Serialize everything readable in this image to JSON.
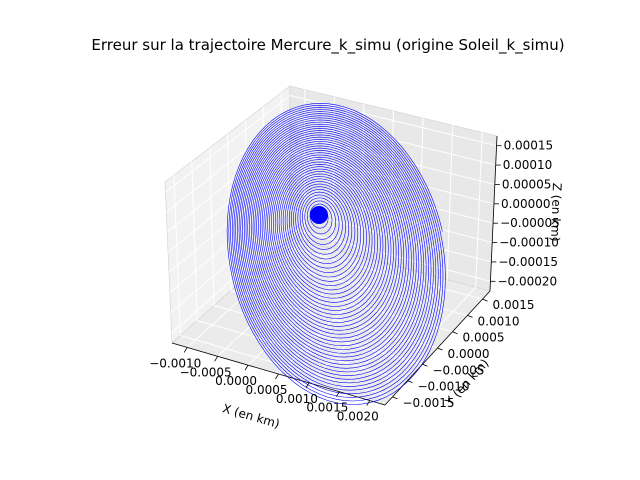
{
  "chart_data": {
    "type": "line3d",
    "title": "Erreur sur la trajectoire Mercure_k_simu (origine Soleil_k_simu)",
    "xlabel": "X (en km)",
    "ylabel": "Y (en km)",
    "zlabel": "Z (en km)",
    "x_ticks": [
      "−0.0010",
      "−0.0005",
      "0.0000",
      "0.0005",
      "0.0010",
      "0.0015",
      "0.0020"
    ],
    "y_ticks": [
      "−0.0015",
      "−0.0010",
      "−0.0005",
      "0.0000",
      "0.0005",
      "0.0010",
      "0.0015"
    ],
    "z_ticks": [
      "0.00015",
      "0.00010",
      "0.00005",
      "0.00000",
      "−0.00005",
      "−0.00010",
      "−0.00015",
      "−0.00020"
    ],
    "xlim": [
      -0.0013,
      0.0021
    ],
    "ylim": [
      -0.0017,
      0.0017
    ],
    "zlim": [
      -0.00022,
      0.00017
    ],
    "grid": true,
    "series": [
      {
        "color": "#0000ff",
        "shape": "spiral",
        "x_range": [
          -0.0011,
          0.002
        ],
        "y_range": [
          -0.0016,
          0.0016
        ],
        "z_range": [
          -0.00021,
          0.00016
        ],
        "turns": 45
      }
    ]
  }
}
